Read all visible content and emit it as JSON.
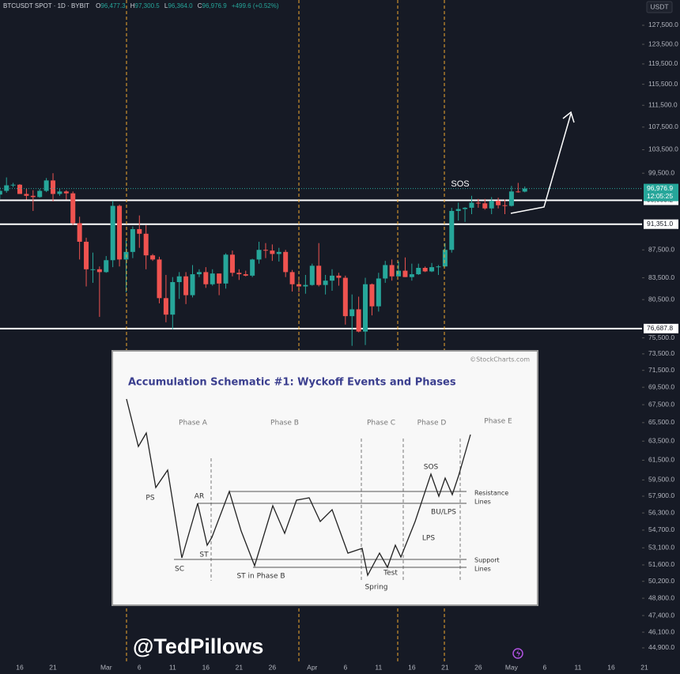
{
  "chart_data": {
    "type": "candlestick",
    "header": {
      "symbol": "BTCUSDT SPOT · 1D · BYBIT",
      "open_label": "O",
      "open": "96,477.3",
      "high_label": "H",
      "high": "97,300.5",
      "low_label": "L",
      "low": "96,364.0",
      "close_label": "C",
      "close": "96,976.9",
      "change": "+499.6 (+0.52%)"
    },
    "currency": "USDT",
    "log_scale": true,
    "up_color": "#26a69a",
    "down_color": "#ef5350",
    "categories": [
      null,
      null,
      null,
      "16",
      null,
      null,
      null,
      null,
      "21",
      null,
      null,
      null,
      null,
      null,
      null,
      null,
      "Mar",
      null,
      null,
      null,
      null,
      "6",
      null,
      null,
      null,
      null,
      "11",
      null,
      null,
      null,
      null,
      "16",
      null,
      null,
      null,
      null,
      "21",
      null,
      null,
      null,
      null,
      "26",
      null,
      null,
      null,
      null,
      null,
      "Apr",
      null,
      null,
      null,
      null,
      "6",
      null,
      null,
      null,
      null,
      "11",
      null,
      null,
      null,
      null,
      "16",
      null,
      null,
      null,
      null,
      "21",
      null,
      null,
      null,
      null,
      "26",
      null,
      null,
      null,
      null,
      "May",
      null,
      null,
      null,
      null,
      "6",
      null,
      null,
      null,
      null,
      "11",
      null,
      null,
      null,
      null,
      "16",
      null,
      null,
      null,
      null,
      "21",
      null
    ],
    "open": [
      96000,
      96600,
      97500,
      97600,
      96100,
      95800,
      95600,
      96600,
      98300,
      96100,
      96500,
      96200,
      91500,
      88700,
      84700,
      84700,
      84300,
      86000,
      94200,
      86100,
      87200,
      90600,
      89900,
      86700,
      86100,
      80700,
      78500,
      82900,
      83700,
      81100,
      84000,
      84300,
      82600,
      84100,
      82700,
      86800,
      84200,
      84000,
      83800,
      86100,
      87500,
      87400,
      86900,
      87200,
      84300,
      82600,
      82300,
      82500,
      85200,
      82500,
      83100,
      83800,
      83500,
      78300,
      79200,
      76300,
      82600,
      79600,
      83400,
      85300,
      83700,
      84500,
      83600,
      84000,
      84900,
      84400,
      85000,
      85100,
      87500,
      93400,
      93700,
      93900,
      94700,
      94600,
      93800,
      95000,
      94300,
      94200,
      96500,
      96477.3,
      null,
      null,
      null,
      null,
      null,
      null,
      null,
      null,
      null,
      null,
      null,
      null,
      null,
      null,
      null,
      null,
      null,
      null,
      null
    ],
    "high": [
      97200,
      98800,
      97900,
      97700,
      97000,
      96700,
      96900,
      98700,
      99500,
      96900,
      96700,
      96500,
      92500,
      89300,
      87100,
      85100,
      86600,
      95000,
      94400,
      88900,
      91000,
      92700,
      91200,
      86900,
      86500,
      83900,
      83600,
      84300,
      84300,
      85300,
      84700,
      85000,
      84700,
      84100,
      87000,
      87400,
      84700,
      84500,
      86200,
      88700,
      88500,
      88300,
      87800,
      87500,
      84600,
      83500,
      83900,
      85500,
      88500,
      83900,
      84700,
      84200,
      83800,
      81200,
      80900,
      83500,
      82700,
      84200,
      85900,
      86100,
      85800,
      86400,
      85500,
      85500,
      85100,
      85600,
      85300,
      88500,
      93900,
      94700,
      94000,
      95800,
      95300,
      95300,
      95600,
      95500,
      95200,
      97400,
      97900,
      97300.5,
      null,
      null,
      null,
      null,
      null,
      null,
      null,
      null,
      null,
      null,
      null,
      null,
      null,
      null,
      null,
      null,
      null,
      null,
      null
    ],
    "low": [
      95300,
      96300,
      97200,
      96100,
      95200,
      93400,
      95500,
      96400,
      94900,
      95800,
      95200,
      91200,
      86100,
      82300,
      82800,
      78200,
      84200,
      85000,
      85100,
      81500,
      86300,
      87800,
      84700,
      85900,
      80000,
      77500,
      76600,
      80600,
      79900,
      80800,
      83600,
      82100,
      82400,
      81100,
      82000,
      83700,
      83200,
      83700,
      83600,
      85500,
      86300,
      85900,
      85800,
      83600,
      81600,
      81500,
      81300,
      82400,
      82300,
      81200,
      81700,
      82400,
      77200,
      74500,
      76200,
      74600,
      78400,
      78900,
      82800,
      83100,
      83700,
      83600,
      83100,
      83900,
      84300,
      84300,
      83900,
      85100,
      87100,
      91900,
      91700,
      92900,
      93900,
      93600,
      92900,
      93800,
      92900,
      94100,
      96300,
      96364,
      null,
      null,
      null,
      null,
      null,
      null,
      null,
      null,
      null,
      null,
      null,
      null,
      null,
      null,
      null,
      null,
      null,
      null,
      null
    ],
    "close": [
      96600,
      97500,
      97600,
      96100,
      95800,
      95600,
      96600,
      98300,
      96100,
      96500,
      96200,
      91500,
      88700,
      84700,
      84700,
      84300,
      86000,
      94200,
      86100,
      87200,
      90600,
      89900,
      86700,
      86100,
      80700,
      78500,
      82900,
      83700,
      81100,
      84000,
      84300,
      82600,
      84100,
      82700,
      86800,
      84200,
      84000,
      83800,
      86100,
      87500,
      87400,
      86900,
      87200,
      84300,
      82600,
      82300,
      82500,
      85200,
      82500,
      83100,
      83800,
      83500,
      78300,
      79200,
      76300,
      82600,
      79600,
      83400,
      85300,
      83700,
      84500,
      83600,
      84000,
      84900,
      84400,
      85000,
      85100,
      87500,
      93400,
      93700,
      93900,
      94700,
      94600,
      93800,
      95000,
      94300,
      94200,
      96500,
      96477.3,
      96976.9,
      null,
      null,
      null,
      null,
      null,
      null,
      null,
      null,
      null,
      null,
      null,
      null,
      null,
      null,
      null,
      null,
      null,
      null,
      null
    ],
    "ylim": [
      43840,
      133020
    ],
    "yticks": [
      {
        "value": 127500,
        "label": "127,500.0"
      },
      {
        "value": 123500,
        "label": "123,500.0"
      },
      {
        "value": 119500,
        "label": "119,500.0"
      },
      {
        "value": 115500,
        "label": "115,500.0"
      },
      {
        "value": 111500,
        "label": "111,500.0"
      },
      {
        "value": 107500,
        "label": "107,500.0"
      },
      {
        "value": 103500,
        "label": "103,500.0"
      },
      {
        "value": 99500,
        "label": "99,500.0"
      },
      {
        "value": 87500,
        "label": "87,500.0"
      },
      {
        "value": 83500,
        "label": "83,500.0"
      },
      {
        "value": 80500,
        "label": "80,500.0"
      },
      {
        "value": 75500,
        "label": "75,500.0"
      },
      {
        "value": 73500,
        "label": "73,500.0"
      },
      {
        "value": 71500,
        "label": "71,500.0"
      },
      {
        "value": 69500,
        "label": "69,500.0"
      },
      {
        "value": 67500,
        "label": "67,500.0"
      },
      {
        "value": 65500,
        "label": "65,500.0"
      },
      {
        "value": 63500,
        "label": "63,500.0"
      },
      {
        "value": 61500,
        "label": "61,500.0"
      },
      {
        "value": 59500,
        "label": "59,500.0"
      },
      {
        "value": 57900,
        "label": "57,900.0"
      },
      {
        "value": 56300,
        "label": "56,300.0"
      },
      {
        "value": 54700,
        "label": "54,700.0"
      },
      {
        "value": 53100,
        "label": "53,100.0"
      },
      {
        "value": 51600,
        "label": "51,600.0"
      },
      {
        "value": 50200,
        "label": "50,200.0"
      },
      {
        "value": 48800,
        "label": "48,800.0"
      },
      {
        "value": 47400,
        "label": "47,400.0"
      },
      {
        "value": 46100,
        "label": "46,100.0"
      },
      {
        "value": 44900,
        "label": "44,900.0"
      }
    ],
    "levels": [
      {
        "value": 95083.2,
        "label": "95,083.2"
      },
      {
        "value": 91351.0,
        "label": "91,351.0"
      },
      {
        "value": 76687.8,
        "label": "76,687.8"
      }
    ],
    "last_price": {
      "value": 96976.9,
      "label": "96,976.9"
    },
    "countdown": "12:05:25",
    "annotation": "SOS",
    "watermark": "@TedPillows"
  },
  "inset": {
    "title": "Accumulation Schematic #1: Wyckoff Events and Phases",
    "credit": "©StockCharts.com",
    "phases": [
      "Phase A",
      "Phase B",
      "Phase C",
      "Phase D",
      "Phase E"
    ],
    "events": [
      "PS",
      "SC",
      "AR",
      "ST",
      "ST in Phase B",
      "Spring",
      "Test",
      "LPS",
      "BU/LPS",
      "SOS"
    ],
    "lines": [
      "Resistance",
      "Lines",
      "Support",
      "Lines"
    ]
  }
}
